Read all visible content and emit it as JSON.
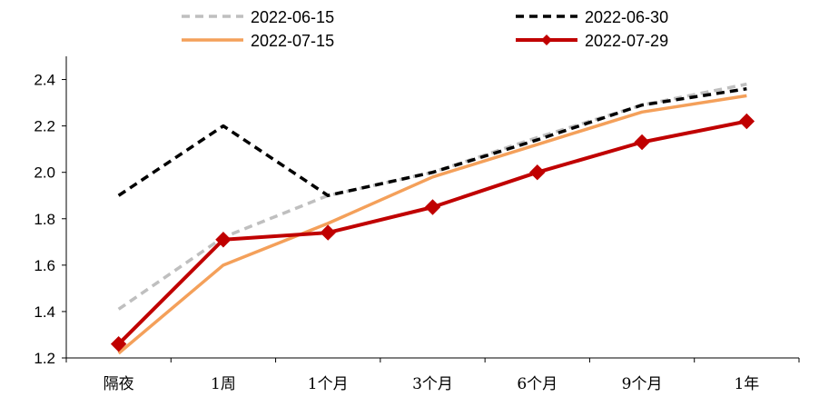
{
  "chart_data": {
    "type": "line",
    "title": "",
    "xlabel": "",
    "ylabel": "",
    "categories": [
      "隔夜",
      "1周",
      "1个月",
      "3个月",
      "6个月",
      "9个月",
      "1年"
    ],
    "ylim": [
      1.2,
      2.5
    ],
    "yticks": [
      "1.2",
      "1.4",
      "1.6",
      "1.8",
      "2.0",
      "2.2",
      "2.4"
    ],
    "grid": false,
    "legend_position": "top",
    "series": [
      {
        "name": "2022-06-15",
        "values": [
          1.41,
          1.72,
          1.9,
          2.0,
          2.15,
          2.29,
          2.38
        ],
        "color": "#bfbfbf",
        "style": "dashed",
        "marker": "none"
      },
      {
        "name": "2022-06-30",
        "values": [
          1.9,
          2.2,
          1.9,
          2.0,
          2.14,
          2.29,
          2.36
        ],
        "color": "#000000",
        "style": "dashed",
        "marker": "none"
      },
      {
        "name": "2022-07-15",
        "values": [
          1.22,
          1.6,
          1.78,
          1.98,
          2.12,
          2.26,
          2.33
        ],
        "color": "#f4a05a",
        "style": "solid",
        "marker": "none"
      },
      {
        "name": "2022-07-29",
        "values": [
          1.26,
          1.71,
          1.74,
          1.85,
          2.0,
          2.13,
          2.22
        ],
        "color": "#c00000",
        "style": "solid",
        "marker": "diamond"
      }
    ]
  }
}
